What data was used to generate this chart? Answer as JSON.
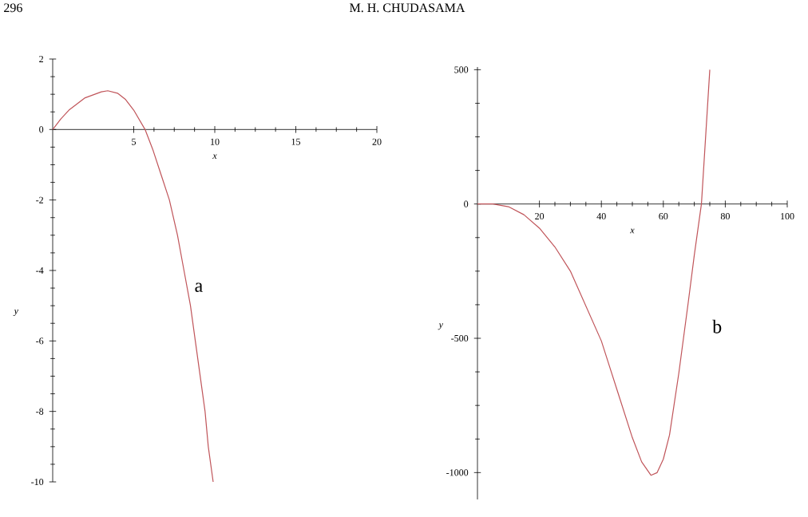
{
  "chart_data": [
    {
      "type": "line",
      "xlabel": "x",
      "ylabel": "y",
      "xlim": [
        0,
        20
      ],
      "ylim": [
        -10,
        2
      ],
      "xticks": [
        5,
        10,
        15,
        20
      ],
      "yticks": [
        -10,
        -8,
        -6,
        -4,
        -2,
        0,
        2
      ],
      "annotations": [
        "296",
        "M. H. CHUDASAMA",
        "a"
      ],
      "series": [
        {
          "color": "#c0555a",
          "x": [
            0,
            0.5,
            1,
            2,
            3,
            3.4,
            4,
            4.5,
            5,
            5.7,
            6.2,
            6.7,
            7.2,
            7.7,
            8.1,
            8.5,
            8.8,
            9.1,
            9.4,
            9.6,
            9.9
          ],
          "values": [
            0,
            0.3,
            0.55,
            0.9,
            1.07,
            1.1,
            1.03,
            0.85,
            0.55,
            0,
            -0.6,
            -1.3,
            -2,
            -3,
            -4,
            -5,
            -6,
            -7,
            -8,
            -9,
            -10
          ]
        }
      ]
    },
    {
      "type": "line",
      "xlabel": "x",
      "ylabel": "y",
      "xlim": [
        0,
        100
      ],
      "ylim": [
        -1100,
        510
      ],
      "xticks": [
        20,
        40,
        60,
        80,
        100
      ],
      "yticks": [
        -1000,
        -500,
        0,
        500
      ],
      "annotations": [
        "b"
      ],
      "series": [
        {
          "color": "#c0555a",
          "x": [
            0,
            5,
            10,
            15,
            20,
            25,
            30,
            35,
            40,
            45,
            50,
            53,
            56,
            58,
            60,
            62,
            65,
            68,
            70,
            72.3,
            75
          ],
          "values": [
            0,
            0,
            -10,
            -40,
            -90,
            -160,
            -250,
            -380,
            -510,
            -690,
            -870,
            -960,
            -1010,
            -1000,
            -950,
            -860,
            -630,
            -370,
            -190,
            0,
            500
          ]
        }
      ]
    }
  ]
}
